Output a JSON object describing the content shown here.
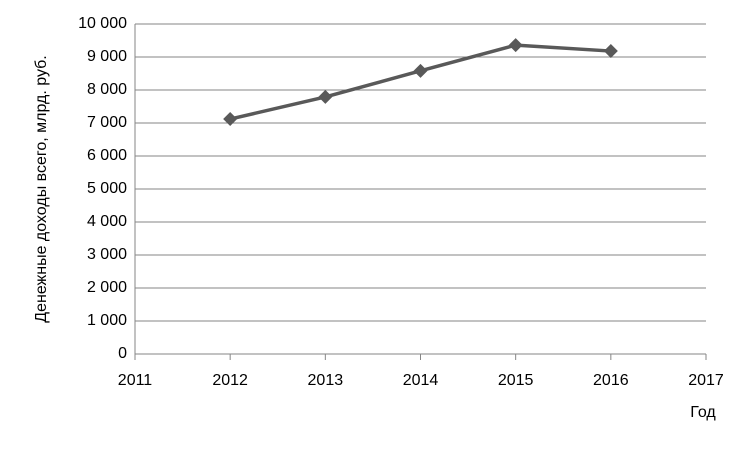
{
  "chart_data": {
    "type": "line",
    "x": [
      2012,
      2013,
      2014,
      2015,
      2016
    ],
    "values": [
      7120,
      7790,
      8580,
      9360,
      9180
    ],
    "color": "#595959",
    "marker": "diamond",
    "x_label": "Год",
    "y_label": "Денежные доходы всего, млрд. руб.",
    "xlim": [
      2011,
      2017
    ],
    "xticks": [
      2011,
      2012,
      2013,
      2014,
      2015,
      2016,
      2017
    ],
    "ylim": [
      0,
      10000
    ],
    "yticks": [
      0,
      {
        "value": 1000,
        "label": "1 000"
      },
      {
        "value": 2000,
        "label": "2 000"
      },
      {
        "value": 3000,
        "label": "3 000"
      },
      {
        "value": 4000,
        "label": "4 000"
      },
      {
        "value": 5000,
        "label": "5 000"
      },
      {
        "value": 6000,
        "label": "6 000"
      },
      {
        "value": 7000,
        "label": "7 000"
      },
      {
        "value": 8000,
        "label": "8 000"
      },
      {
        "value": 9000,
        "label": "9 000"
      },
      {
        "value": 10000,
        "label": "10 000"
      }
    ],
    "grid": true
  }
}
